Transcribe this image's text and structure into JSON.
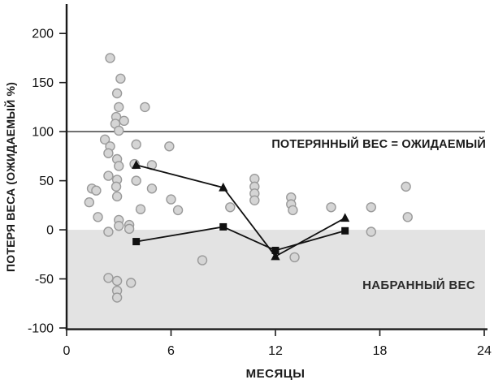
{
  "chart_data": {
    "type": "scatter",
    "title": "",
    "xlabel": "МЕСЯЦЫ",
    "ylabel": "ПОТЕРЯ ВЕСА (ОЖИДАЕМЫЙ %)",
    "xlim": [
      0,
      24
    ],
    "ylim": [
      -100,
      225
    ],
    "xticks": [
      0,
      6,
      12,
      18,
      24
    ],
    "yticks": [
      200,
      150,
      100,
      50,
      0,
      -50,
      -100
    ],
    "grid": false,
    "legend": "none",
    "reference_line": {
      "y": 100,
      "label": "ПОТЕРЯННЫЙ ВЕС = ОЖИДАЕМЫЙ"
    },
    "shaded_region": {
      "y_from": -100,
      "y_to": 0,
      "label": "НАБРАННЫЙ ВЕС"
    },
    "annotations": {
      "expected_equal": "ПОТЕРЯННЫЙ ВЕС = ОЖИДАЕМЫЙ",
      "gained_weight": "НАБРАННЫЙ ВЕС"
    },
    "colors": {
      "scatter_fill": "#d5d5d5",
      "scatter_stroke": "#9a9a9a",
      "trend_line": "#111111",
      "axis": "#1a1a1a",
      "band": "#e3e3e3",
      "background": "#ffffff"
    },
    "series": [
      {
        "name": "individual_patients",
        "type": "scatter",
        "marker": "circle",
        "points": [
          [
            2.5,
            175
          ],
          [
            3.1,
            154
          ],
          [
            2.9,
            139
          ],
          [
            3.0,
            125
          ],
          [
            4.5,
            125
          ],
          [
            2.85,
            115
          ],
          [
            3.3,
            111
          ],
          [
            2.8,
            108
          ],
          [
            3.0,
            101
          ],
          [
            2.2,
            92
          ],
          [
            2.5,
            85
          ],
          [
            4.0,
            87
          ],
          [
            5.9,
            85
          ],
          [
            2.4,
            78
          ],
          [
            2.9,
            72
          ],
          [
            3.0,
            65
          ],
          [
            3.9,
            67
          ],
          [
            4.9,
            66
          ],
          [
            2.4,
            55
          ],
          [
            2.9,
            51
          ],
          [
            2.85,
            44
          ],
          [
            1.45,
            42
          ],
          [
            1.7,
            40
          ],
          [
            4.0,
            50
          ],
          [
            4.9,
            42
          ],
          [
            1.3,
            28
          ],
          [
            2.9,
            34
          ],
          [
            4.25,
            21
          ],
          [
            6.0,
            31
          ],
          [
            6.4,
            20
          ],
          [
            1.8,
            13
          ],
          [
            3.0,
            10
          ],
          [
            3.0,
            4
          ],
          [
            3.6,
            5
          ],
          [
            3.6,
            1
          ],
          [
            2.4,
            -2
          ],
          [
            7.8,
            -31
          ],
          [
            2.4,
            -49
          ],
          [
            2.9,
            -52
          ],
          [
            3.7,
            -54
          ],
          [
            2.9,
            -62
          ],
          [
            2.9,
            -69
          ],
          [
            10.8,
            52
          ],
          [
            10.8,
            44
          ],
          [
            10.8,
            37
          ],
          [
            10.8,
            30
          ],
          [
            9.4,
            23
          ],
          [
            12.9,
            33
          ],
          [
            12.9,
            26
          ],
          [
            13.0,
            20
          ],
          [
            15.2,
            23
          ],
          [
            13.1,
            -28
          ],
          [
            19.5,
            44
          ],
          [
            17.5,
            23
          ],
          [
            19.6,
            13
          ],
          [
            17.5,
            -2
          ]
        ]
      },
      {
        "name": "group_mean_triangle",
        "type": "line",
        "marker": "triangle",
        "points": [
          [
            4,
            66
          ],
          [
            9,
            43
          ],
          [
            12,
            -27
          ],
          [
            16,
            12
          ]
        ]
      },
      {
        "name": "group_mean_square",
        "type": "line",
        "marker": "square",
        "points": [
          [
            4,
            -12
          ],
          [
            9,
            3
          ],
          [
            12,
            -21
          ],
          [
            16,
            -1
          ]
        ]
      }
    ]
  }
}
